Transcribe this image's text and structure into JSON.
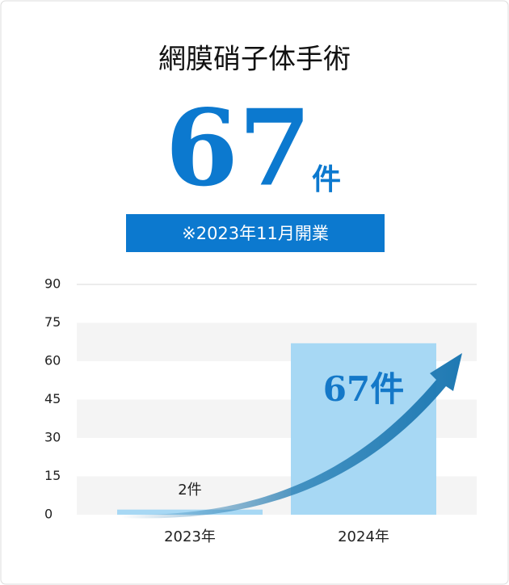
{
  "chart_data": {
    "type": "bar",
    "title": "網膜硝子体手術",
    "headline": {
      "value": "67",
      "unit": "件"
    },
    "note": "※2023年11月開業",
    "categories": [
      "2023年",
      "2024年"
    ],
    "values": [
      2,
      67
    ],
    "value_labels": [
      "2件",
      "67件"
    ],
    "color": "#a7d8f4",
    "ylim": [
      0,
      90
    ],
    "yticks": [
      0,
      15,
      30,
      45,
      60,
      75,
      90
    ],
    "bands": true
  }
}
